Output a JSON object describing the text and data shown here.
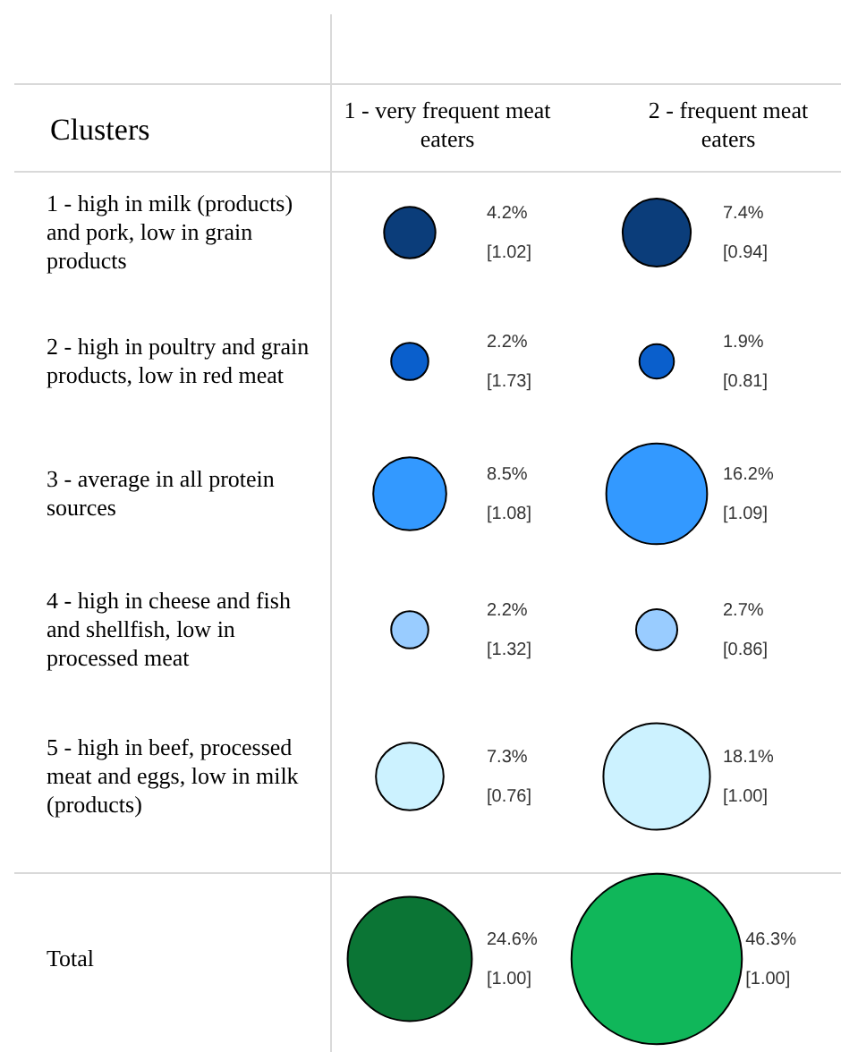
{
  "chart_data": {
    "type": "other",
    "ylabel": "Clusters",
    "categories": [
      "1 - high in milk (products) and pork, low in grain products",
      "2 - high in poultry and grain products, low in red meat",
      "3 - average in all protein sources",
      "4 - high in cheese and fish and shellfish, low in processed meat",
      "5 - high in beef, processed meat and eggs, low in milk (products)",
      "Total"
    ],
    "series": [
      {
        "name": "1 - very frequent meat eaters",
        "values": [
          4.2,
          2.2,
          8.5,
          2.2,
          7.3,
          24.6
        ],
        "value_labels": [
          "4.2%",
          "2.2%",
          "8.5%",
          "2.2%",
          "7.3%",
          "24.6%"
        ],
        "colors": [
          "#0b3d7a",
          "#0a5fcc",
          "#3399ff",
          "#99ccff",
          "#ccf2ff",
          "#0b7535"
        ]
      },
      {
        "name": "2 - frequent meat eaters",
        "values": [
          7.4,
          1.9,
          16.2,
          2.7,
          18.1,
          46.3
        ],
        "value_labels": [
          "7.4%",
          "1.9%",
          "16.2%",
          "2.7%",
          "18.1%",
          "46.3%"
        ],
        "colors": [
          "#0b3d7a",
          "#0a5fcc",
          "#3399ff",
          "#99ccff",
          "#ccf2ff",
          "#10b75a"
        ]
      }
    ],
    "annotations": [
      "[1.02]",
      "[0.94]",
      "[1.73]",
      "[0.81]",
      "[1.08]",
      "[1.09]",
      "[1.32]",
      "[0.86]",
      "[0.76]",
      "[1.00]",
      "[1.00]",
      "[1.00]"
    ]
  }
}
